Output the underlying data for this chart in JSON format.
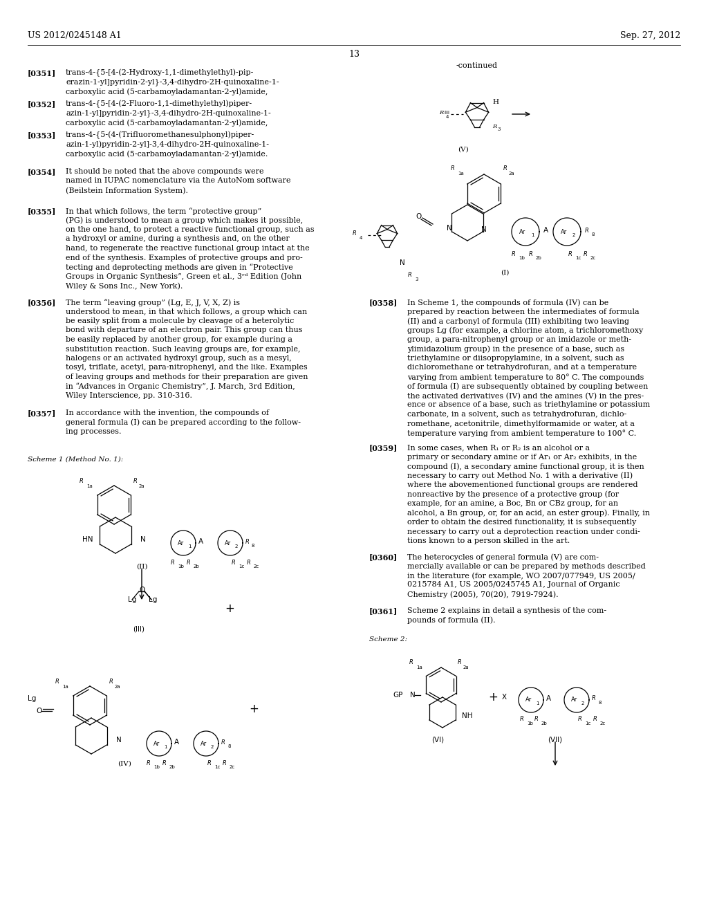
{
  "page_number": "13",
  "patent_number": "US 2012/0245148 A1",
  "patent_date": "Sep. 27, 2012",
  "background_color": "#ffffff",
  "text_color": "#000000"
}
